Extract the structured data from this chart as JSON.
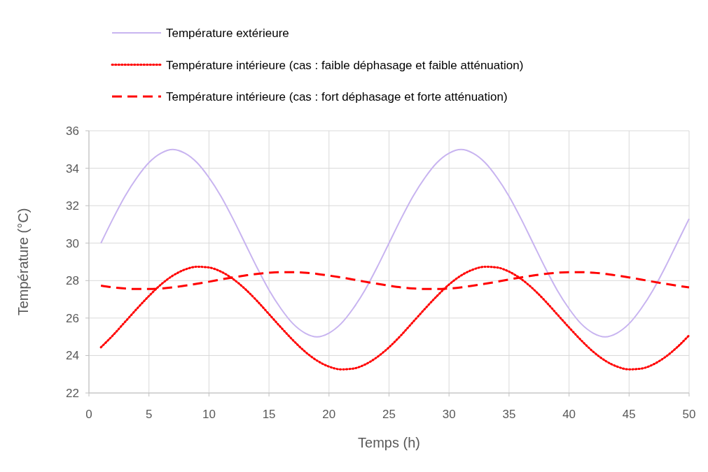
{
  "chart_data": {
    "type": "line",
    "xlabel": "Temps (h)",
    "ylabel": "Température (°C)",
    "x": [
      1,
      2,
      3,
      4,
      5,
      6,
      7,
      8,
      9,
      10,
      11,
      12,
      13,
      14,
      15,
      16,
      17,
      18,
      19,
      20,
      21,
      22,
      23,
      24,
      25,
      26,
      27,
      28,
      29,
      30,
      31,
      32,
      33,
      34,
      35,
      36,
      37,
      38,
      39,
      40,
      41,
      42,
      43,
      44,
      45,
      46,
      47,
      48,
      49,
      50
    ],
    "xlim": [
      0,
      50
    ],
    "xticks": [
      0,
      5,
      10,
      15,
      20,
      25,
      30,
      35,
      40,
      45,
      50
    ],
    "ylim": [
      22,
      36
    ],
    "yticks": [
      22,
      24,
      26,
      28,
      30,
      32,
      34,
      36
    ],
    "grid": true,
    "legend": "top",
    "series": [
      {
        "name": "Température extérieure",
        "color": "#c8b4f0",
        "line_style": "solid",
        "values": [
          30,
          31.3,
          32.5,
          33.5,
          34.3,
          34.8,
          35,
          34.8,
          34.3,
          33.5,
          32.5,
          31.3,
          30,
          28.7,
          27.5,
          26.5,
          25.7,
          25.2,
          25,
          25.2,
          25.7,
          26.5,
          27.5,
          28.7,
          30,
          31.3,
          32.5,
          33.5,
          34.3,
          34.8,
          35,
          34.8,
          34.3,
          33.5,
          32.5,
          31.3,
          30,
          28.7,
          27.5,
          26.5,
          25.7,
          25.2,
          25,
          25.2,
          25.7,
          26.5,
          27.5,
          28.7,
          30,
          31.3
        ]
      },
      {
        "name": "Température intérieure (cas : faible déphasage et faible atténuation)",
        "color": "#ff0000",
        "line_style": "dotted",
        "values": [
          24.44,
          25.08,
          25.79,
          26.5,
          27.18,
          27.79,
          28.27,
          28.59,
          28.74,
          28.7,
          28.48,
          28.09,
          27.56,
          26.92,
          26.21,
          25.5,
          24.82,
          24.21,
          23.73,
          23.41,
          23.26,
          23.3,
          23.52,
          23.91,
          24.44,
          25.08,
          25.79,
          26.5,
          27.18,
          27.79,
          28.27,
          28.59,
          28.74,
          28.7,
          28.48,
          28.09,
          27.56,
          26.92,
          26.21,
          25.5,
          24.82,
          24.21,
          23.73,
          23.41,
          23.26,
          23.3,
          23.52,
          23.91,
          24.44,
          25.08
        ]
      },
      {
        "name": "Température intérieure (cas : fort déphasage et forte atténuation)",
        "color": "#ff0000",
        "line_style": "dashed",
        "values": [
          27.73,
          27.64,
          27.58,
          27.55,
          27.55,
          27.58,
          27.64,
          27.73,
          27.83,
          27.94,
          28.06,
          28.17,
          28.27,
          28.36,
          28.42,
          28.45,
          28.45,
          28.42,
          28.36,
          28.27,
          28.17,
          28.06,
          27.94,
          27.83,
          27.73,
          27.64,
          27.58,
          27.55,
          27.55,
          27.58,
          27.64,
          27.73,
          27.83,
          27.94,
          28.06,
          28.17,
          28.27,
          28.36,
          28.42,
          28.45,
          28.45,
          28.42,
          28.36,
          28.27,
          28.17,
          28.06,
          27.94,
          27.83,
          27.73,
          27.64
        ]
      }
    ]
  }
}
